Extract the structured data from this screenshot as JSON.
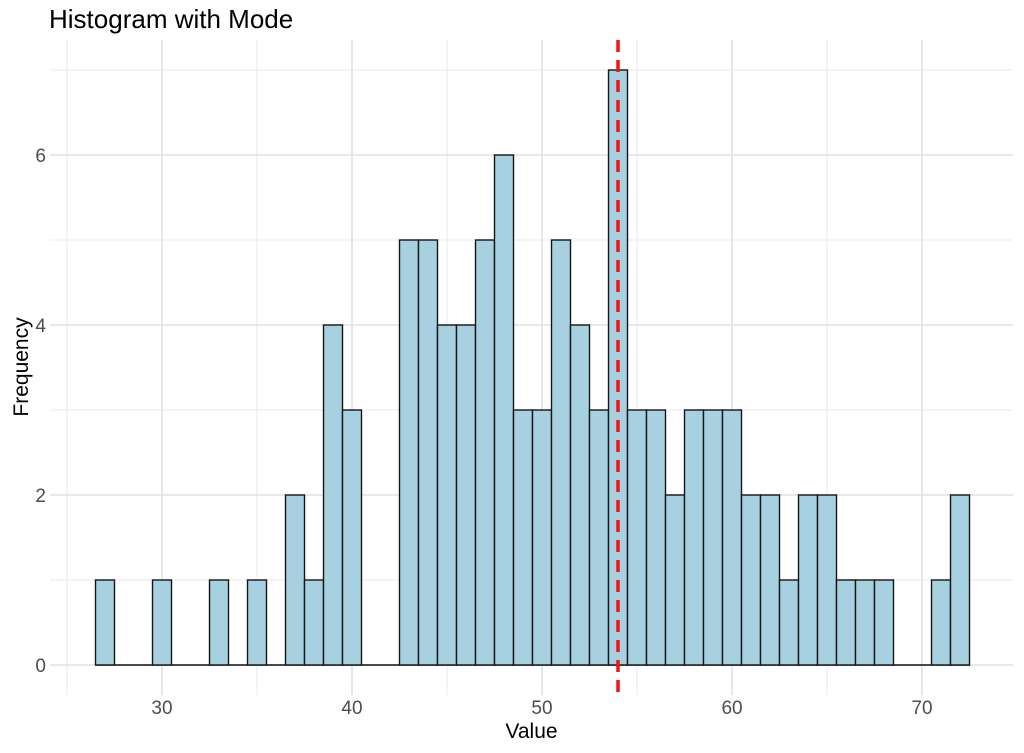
{
  "chart_data": {
    "type": "bar",
    "subtype": "histogram",
    "title": "Histogram with Mode",
    "xlabel": "Value",
    "ylabel": "Frequency",
    "bin_width": 1,
    "bins": [
      27,
      28,
      29,
      30,
      31,
      32,
      33,
      34,
      35,
      36,
      37,
      38,
      39,
      40,
      41,
      42,
      43,
      44,
      45,
      46,
      47,
      48,
      49,
      50,
      51,
      52,
      53,
      54,
      55,
      56,
      57,
      58,
      59,
      60,
      61,
      62,
      63,
      64,
      65,
      66,
      67,
      68,
      69,
      70,
      71,
      72
    ],
    "counts": [
      1,
      0,
      0,
      1,
      0,
      0,
      1,
      0,
      1,
      0,
      2,
      1,
      4,
      3,
      0,
      0,
      5,
      5,
      4,
      4,
      5,
      6,
      3,
      3,
      5,
      4,
      3,
      7,
      3,
      3,
      2,
      3,
      3,
      3,
      2,
      2,
      1,
      2,
      2,
      1,
      1,
      1,
      0,
      0,
      1,
      2
    ],
    "x_ticks": [
      30,
      40,
      50,
      60,
      70
    ],
    "x_minor_ticks": [
      25,
      35,
      45,
      55,
      65
    ],
    "y_ticks": [
      0,
      2,
      4,
      6
    ],
    "y_minor_ticks": [
      1,
      3,
      5,
      7
    ],
    "xlim": [
      24.105,
      74.789
    ],
    "ylim": [
      -0.353,
      7.353
    ],
    "mode_line": {
      "x": 54,
      "style": "dashed",
      "color": "#F21414"
    },
    "grid": true,
    "legend": "none",
    "colors": {
      "bar_fill": "#A7D1E1",
      "bar_stroke": "#151515",
      "grid_major": "#E4E4E4",
      "grid_minor": "#EDEDED",
      "tick_label": "#4D4D4D",
      "axis_title": "#000000",
      "title": "#000000",
      "background": "#FFFFFF"
    }
  }
}
